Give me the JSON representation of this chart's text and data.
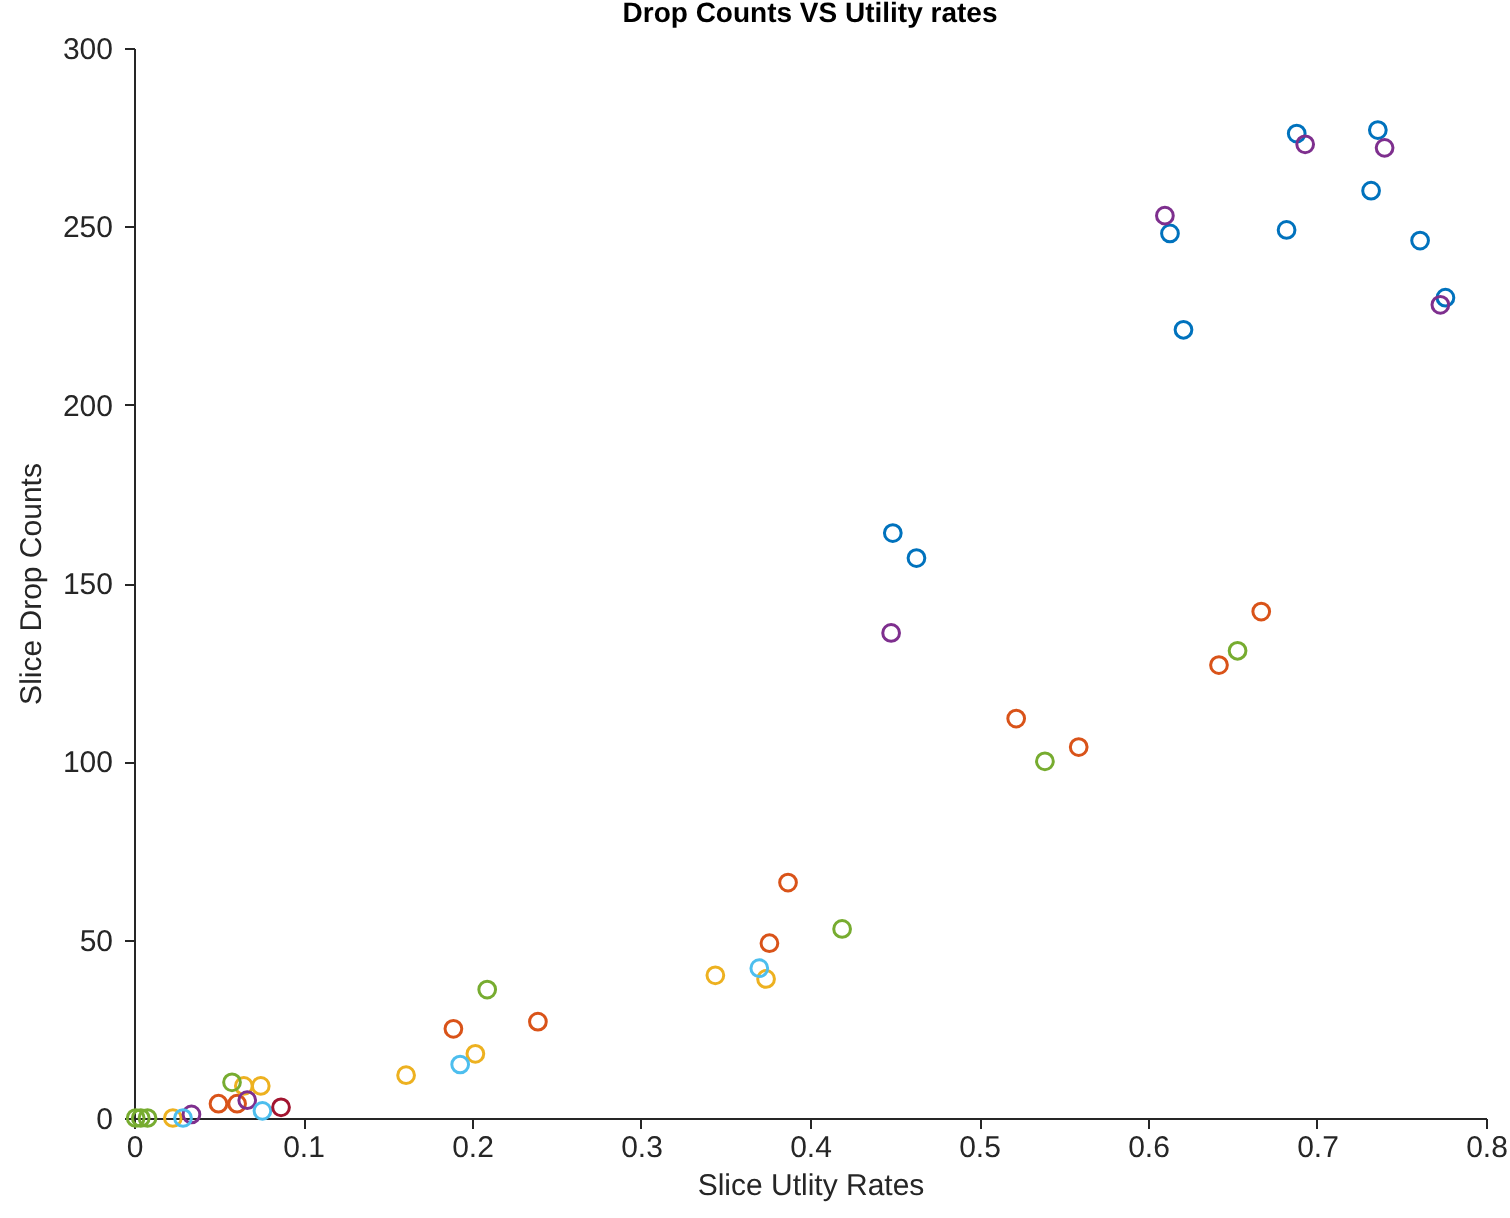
{
  "chart_data": {
    "type": "scatter",
    "title": "Drop Counts VS Utility rates",
    "xlabel": "Slice Utlity Rates",
    "ylabel": "Slice Drop Counts",
    "xlim": [
      0,
      0.8
    ],
    "xticks": [
      0,
      0.1,
      0.2,
      0.3,
      0.4,
      0.5,
      0.6,
      0.7,
      0.8
    ],
    "ylim": [
      0,
      300
    ],
    "yticks": [
      0,
      50,
      100,
      150,
      200,
      250,
      300
    ],
    "grid": false,
    "legend": false,
    "marker": "circle",
    "series": [
      {
        "color": "#0072bd",
        "x": [
          0.688,
          0.736,
          0.732,
          0.613,
          0.682,
          0.761,
          0.776,
          0.621,
          0.449,
          0.463
        ],
        "values": [
          276,
          277,
          260,
          248,
          249,
          246,
          230,
          221,
          164,
          157
        ]
      },
      {
        "color": "#d95319",
        "x": [
          0.667,
          0.642,
          0.522,
          0.559,
          0.387,
          0.376,
          0.239,
          0.189,
          0.05,
          0.061
        ],
        "values": [
          142,
          127,
          112,
          104,
          66,
          49,
          27,
          25,
          4,
          4
        ]
      },
      {
        "color": "#edb120",
        "x": [
          0.344,
          0.374,
          0.202,
          0.161,
          0.023,
          0.065,
          0.075
        ],
        "values": [
          40,
          39,
          18,
          12,
          0,
          9,
          9
        ]
      },
      {
        "color": "#7e2f8e",
        "x": [
          0.693,
          0.74,
          0.61,
          0.773,
          0.448,
          0.034,
          0.067
        ],
        "values": [
          273,
          272,
          253,
          228,
          136,
          1,
          5
        ]
      },
      {
        "color": "#77ac30",
        "x": [
          0.653,
          0.539,
          0.419,
          0.209,
          0.058,
          0.001,
          0.004,
          0.008
        ],
        "values": [
          131,
          100,
          53,
          36,
          10,
          0,
          0,
          0
        ]
      },
      {
        "color": "#4dbeee",
        "x": [
          0.37,
          0.193,
          0.029,
          0.076
        ],
        "values": [
          42,
          15,
          0,
          2
        ]
      },
      {
        "color": "#a2142f",
        "x": [
          0.087
        ],
        "values": [
          3
        ]
      }
    ]
  }
}
